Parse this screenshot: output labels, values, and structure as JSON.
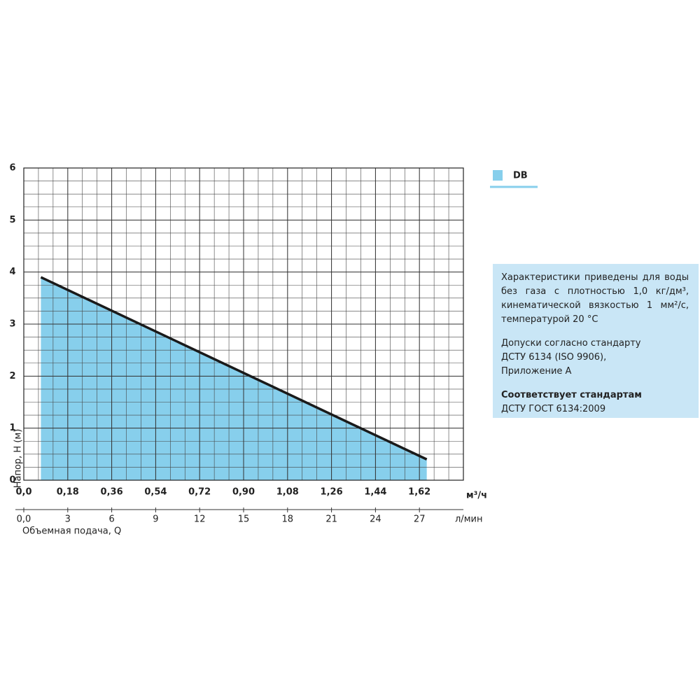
{
  "chart_data": {
    "type": "area",
    "y_label": "Напор, H (м)",
    "x_label": "Объемная подача, Q",
    "x_unit": "м³/ч",
    "x2_unit": "л/мин",
    "x": [
      0.07,
      1.65
    ],
    "series": [
      {
        "name": "DB",
        "color": "#87cfec",
        "values": [
          3.9,
          0.4
        ]
      }
    ],
    "line_color": "#1a1a1a",
    "xlim": [
      0,
      1.8
    ],
    "xticks": [
      {
        "value": 0,
        "label": "0,0"
      },
      {
        "value": 0.18,
        "label": "0,18"
      },
      {
        "value": 0.36,
        "label": "0,36"
      },
      {
        "value": 0.54,
        "label": "0,54"
      },
      {
        "value": 0.72,
        "label": "0,72"
      },
      {
        "value": 0.9,
        "label": "0,90"
      },
      {
        "value": 1.08,
        "label": "1,08"
      },
      {
        "value": 1.26,
        "label": "1,26"
      },
      {
        "value": 1.44,
        "label": "1,44"
      },
      {
        "value": 1.62,
        "label": "1,62"
      }
    ],
    "x2lim": [
      0,
      30
    ],
    "x2ticks": [
      {
        "value": 0,
        "label": "0,0"
      },
      3,
      6,
      9,
      12,
      15,
      18,
      21,
      24,
      27
    ],
    "ylim": [
      0,
      6
    ],
    "yticks": [
      0,
      1,
      2,
      3,
      4,
      5,
      6
    ],
    "grid": true,
    "legend": "top-right"
  },
  "notes": {
    "paragraph1": "Характеристики приведены для воды без газа с плотностью 1,0 кг/дм³, кинематической вязкостью 1 мм²/с, температурой 20 °C",
    "paragraph2": [
      "Допуски согласно стандарту",
      "ДСТУ 6134 (ISO 9906),",
      "Приложение А"
    ],
    "paragraph3_title": "Соответствует стандартам",
    "paragraph3": "ДСТУ ГОСТ 6134:2009"
  }
}
